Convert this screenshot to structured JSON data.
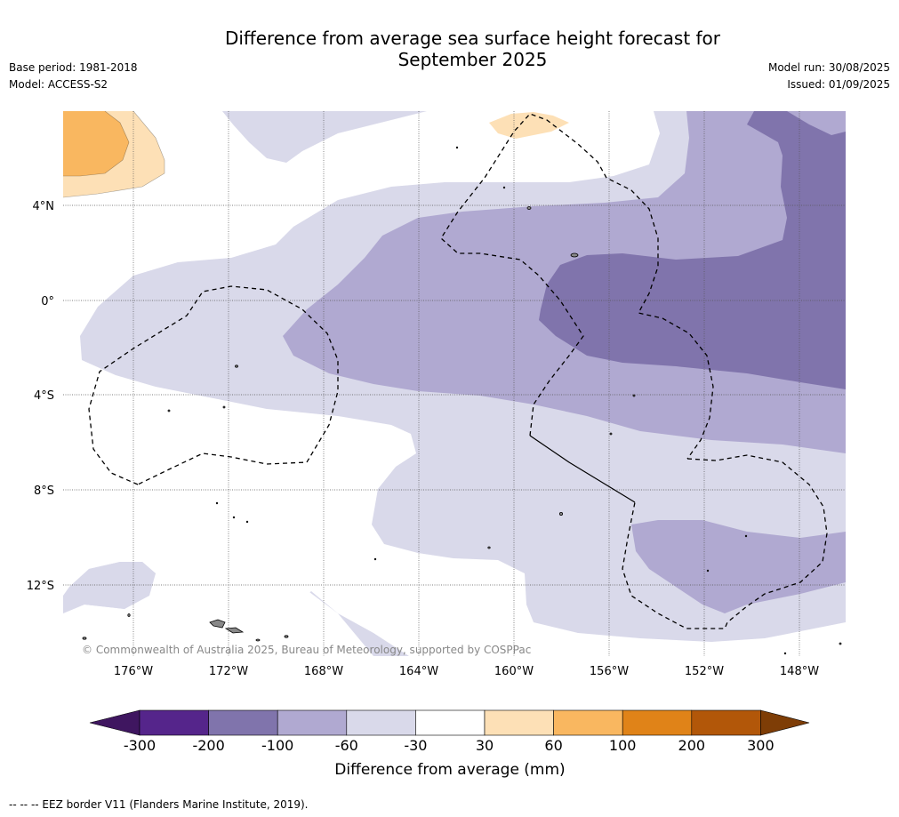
{
  "title_line1": "Difference from average sea surface height forecast for",
  "title_line2": "September 2025",
  "base_period": "Base period: 1981-2018",
  "model": "Model: ACCESS-S2",
  "model_run": "Model run: 30/08/2025",
  "issued": "Issued: 01/09/2025",
  "copyright": "© Commonwealth of Australia 2025, Bureau of Meteorology, supported by COSPPac",
  "lat_labels": [
    "4°N",
    "0°",
    "4°S",
    "8°S",
    "12°S"
  ],
  "lon_labels": [
    "176°W",
    "172°W",
    "168°W",
    "164°W",
    "160°W",
    "156°W",
    "152°W",
    "148°W"
  ],
  "colorbar": {
    "title": "Difference from average (mm)",
    "ticks": [
      "-300",
      "-200",
      "-100",
      "-60",
      "-30",
      "30",
      "60",
      "100",
      "200",
      "300"
    ],
    "colors": [
      "#3f1660",
      "#55258b",
      "#8074ac",
      "#b0a9d1",
      "#d9d9ea",
      "#ffffff",
      "#fde0b6",
      "#f9b760",
      "#e08318",
      "#b25709",
      "#7e3d06"
    ]
  },
  "footer": "--  --  -- EEZ border V11 (Flanders Marine Institute, 2019)."
}
